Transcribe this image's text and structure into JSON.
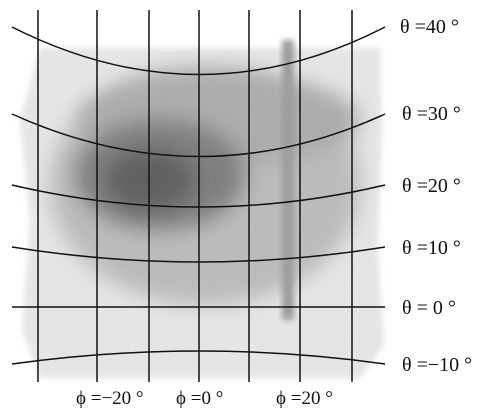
{
  "figure": {
    "theta_lines": [
      {
        "angle": 40,
        "label": "θ =40 °"
      },
      {
        "angle": 30,
        "label": "θ =30 °"
      },
      {
        "angle": 20,
        "label": "θ =20 °"
      },
      {
        "angle": 10,
        "label": "θ =10 °"
      },
      {
        "angle": 0,
        "label": "θ =  0 °"
      },
      {
        "angle": -10,
        "label": "θ =−10 °"
      }
    ],
    "phi_labels": [
      {
        "angle": -20,
        "label": "ϕ =−20 °"
      },
      {
        "angle": 0,
        "label": "ϕ =0 °"
      },
      {
        "angle": 20,
        "label": "ϕ =20 °"
      }
    ],
    "colors": {
      "grid_line": "#111111",
      "density_dark": "#4a4a4a",
      "density_light": "#d9d9d9",
      "background": "#ffffff"
    }
  }
}
